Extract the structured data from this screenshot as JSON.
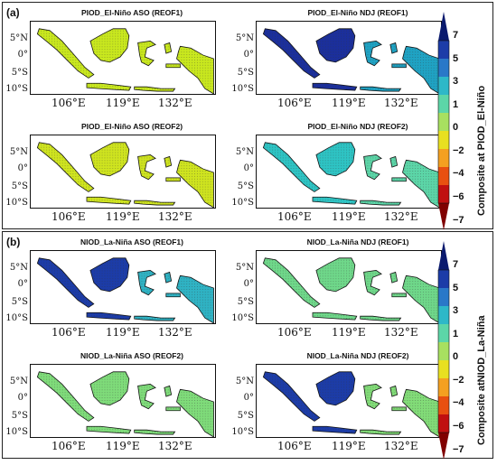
{
  "panels": [
    {
      "letter": "(a)",
      "colorbar_title": "Composite at PIOD_El-Niño",
      "maps": [
        {
          "title": "PIOD_El-Niño ASO (REOF1)",
          "fill": "#c9e81e",
          "accent": null
        },
        {
          "title": "PIOD_El-Niño NDJ (REOF1)",
          "fill": "#1fa3c4",
          "accent": "#1b2f9c"
        },
        {
          "title": "PIOD_El-Niño ASO (REOF2)",
          "fill": "#cfe41f",
          "accent": null
        },
        {
          "title": "PIOD_El-Niño NDJ (REOF2)",
          "fill": "#5cd6a8",
          "accent": "#2ec4c4"
        }
      ]
    },
    {
      "letter": "(b)",
      "colorbar_title": "Composite atNIOD_La-Niña",
      "maps": [
        {
          "title": "NIOD_La-Niña ASO (REOF1)",
          "fill": "#2fb3c4",
          "accent": "#1c3ca8"
        },
        {
          "title": "NIOD_La-Niña NDJ (REOF1)",
          "fill": "#6fd88a",
          "accent": null
        },
        {
          "title": "NIOD_La-Niña ASO (REOF2)",
          "fill": "#7fdc7a",
          "accent": null
        },
        {
          "title": "NIOD_La-Niña NDJ (REOF2)",
          "fill": "#82dc78",
          "accent": "#1c3ca8"
        }
      ]
    }
  ],
  "lat_labels": [
    "5°N",
    "0°",
    "5°S",
    "10°S"
  ],
  "lon_labels": [
    "106°E",
    "119°E",
    "132°E"
  ],
  "colorbar": {
    "ticks": [
      "7",
      "5",
      "3",
      "1",
      "0",
      "−2",
      "−4",
      "−6",
      "−7"
    ],
    "colors": [
      "#0a1a6e",
      "#1c3ca8",
      "#2a78c8",
      "#2eb8c8",
      "#5cd6a8",
      "#a8e060",
      "#e8e020",
      "#f4a020",
      "#e85010",
      "#c01010",
      "#800000"
    ]
  }
}
